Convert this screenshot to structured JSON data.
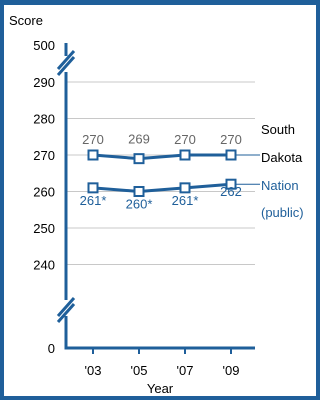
{
  "chart_data": {
    "type": "line",
    "ylabel": "Score",
    "xlabel": "Year",
    "categories": [
      "'03",
      "'05",
      "'07",
      "'09"
    ],
    "y_ticks": [
      0,
      240,
      250,
      260,
      270,
      280,
      290,
      500
    ],
    "axis_breaks": [
      "between 0 and 240",
      "between 290 and 500"
    ],
    "grid": true,
    "series": [
      {
        "name": "South Dakota",
        "name_lines": [
          "South",
          "Dakota"
        ],
        "values": [
          270,
          269,
          270,
          270
        ],
        "labels": [
          "270",
          "269",
          "270",
          "270"
        ],
        "color": "#1f5f9a",
        "label_color": "#666666",
        "name_color": "#000000"
      },
      {
        "name": "Nation (public)",
        "name_lines": [
          "Nation",
          "(public)"
        ],
        "values": [
          261,
          260,
          261,
          262
        ],
        "labels": [
          "261*",
          "260*",
          "261*",
          "262"
        ],
        "color": "#1f5f9a",
        "label_color": "#1f5f9a",
        "name_color": "#1f5f9a"
      }
    ],
    "colors": {
      "frame": "#1f5f9a",
      "axis": "#1f5f9a",
      "grid": "#c8c8c8"
    }
  }
}
